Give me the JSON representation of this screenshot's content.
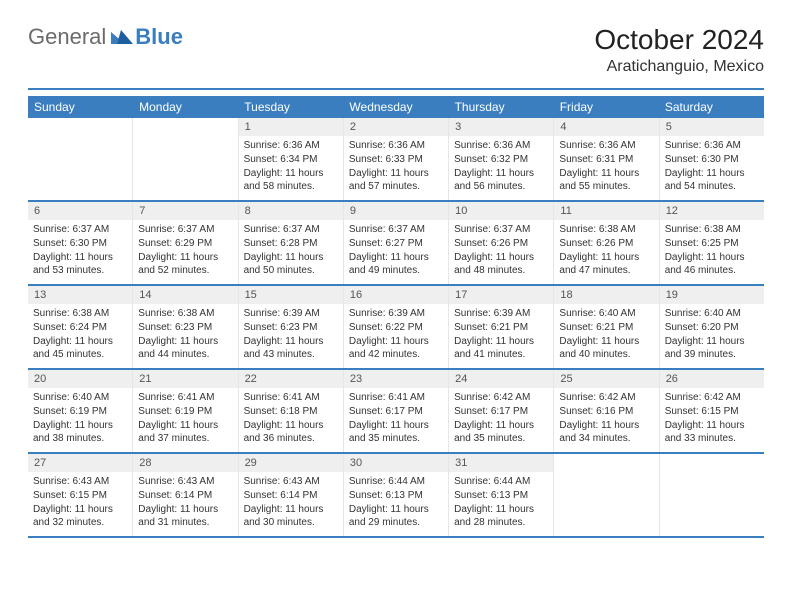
{
  "brand": {
    "word1": "General",
    "word2": "Blue"
  },
  "title": "October 2024",
  "location": "Aratichanguio, Mexico",
  "colors": {
    "accent": "#3a7ebf",
    "dayHeaderBg": "#efefef",
    "text": "#333333",
    "mutedText": "#6b6b6b",
    "background": "#ffffff"
  },
  "daysOfWeek": [
    "Sunday",
    "Monday",
    "Tuesday",
    "Wednesday",
    "Thursday",
    "Friday",
    "Saturday"
  ],
  "weeks": [
    [
      {
        "n": "",
        "sunrise": "",
        "sunset": "",
        "daylight": ""
      },
      {
        "n": "",
        "sunrise": "",
        "sunset": "",
        "daylight": ""
      },
      {
        "n": "1",
        "sunrise": "Sunrise: 6:36 AM",
        "sunset": "Sunset: 6:34 PM",
        "daylight": "Daylight: 11 hours and 58 minutes."
      },
      {
        "n": "2",
        "sunrise": "Sunrise: 6:36 AM",
        "sunset": "Sunset: 6:33 PM",
        "daylight": "Daylight: 11 hours and 57 minutes."
      },
      {
        "n": "3",
        "sunrise": "Sunrise: 6:36 AM",
        "sunset": "Sunset: 6:32 PM",
        "daylight": "Daylight: 11 hours and 56 minutes."
      },
      {
        "n": "4",
        "sunrise": "Sunrise: 6:36 AM",
        "sunset": "Sunset: 6:31 PM",
        "daylight": "Daylight: 11 hours and 55 minutes."
      },
      {
        "n": "5",
        "sunrise": "Sunrise: 6:36 AM",
        "sunset": "Sunset: 6:30 PM",
        "daylight": "Daylight: 11 hours and 54 minutes."
      }
    ],
    [
      {
        "n": "6",
        "sunrise": "Sunrise: 6:37 AM",
        "sunset": "Sunset: 6:30 PM",
        "daylight": "Daylight: 11 hours and 53 minutes."
      },
      {
        "n": "7",
        "sunrise": "Sunrise: 6:37 AM",
        "sunset": "Sunset: 6:29 PM",
        "daylight": "Daylight: 11 hours and 52 minutes."
      },
      {
        "n": "8",
        "sunrise": "Sunrise: 6:37 AM",
        "sunset": "Sunset: 6:28 PM",
        "daylight": "Daylight: 11 hours and 50 minutes."
      },
      {
        "n": "9",
        "sunrise": "Sunrise: 6:37 AM",
        "sunset": "Sunset: 6:27 PM",
        "daylight": "Daylight: 11 hours and 49 minutes."
      },
      {
        "n": "10",
        "sunrise": "Sunrise: 6:37 AM",
        "sunset": "Sunset: 6:26 PM",
        "daylight": "Daylight: 11 hours and 48 minutes."
      },
      {
        "n": "11",
        "sunrise": "Sunrise: 6:38 AM",
        "sunset": "Sunset: 6:26 PM",
        "daylight": "Daylight: 11 hours and 47 minutes."
      },
      {
        "n": "12",
        "sunrise": "Sunrise: 6:38 AM",
        "sunset": "Sunset: 6:25 PM",
        "daylight": "Daylight: 11 hours and 46 minutes."
      }
    ],
    [
      {
        "n": "13",
        "sunrise": "Sunrise: 6:38 AM",
        "sunset": "Sunset: 6:24 PM",
        "daylight": "Daylight: 11 hours and 45 minutes."
      },
      {
        "n": "14",
        "sunrise": "Sunrise: 6:38 AM",
        "sunset": "Sunset: 6:23 PM",
        "daylight": "Daylight: 11 hours and 44 minutes."
      },
      {
        "n": "15",
        "sunrise": "Sunrise: 6:39 AM",
        "sunset": "Sunset: 6:23 PM",
        "daylight": "Daylight: 11 hours and 43 minutes."
      },
      {
        "n": "16",
        "sunrise": "Sunrise: 6:39 AM",
        "sunset": "Sunset: 6:22 PM",
        "daylight": "Daylight: 11 hours and 42 minutes."
      },
      {
        "n": "17",
        "sunrise": "Sunrise: 6:39 AM",
        "sunset": "Sunset: 6:21 PM",
        "daylight": "Daylight: 11 hours and 41 minutes."
      },
      {
        "n": "18",
        "sunrise": "Sunrise: 6:40 AM",
        "sunset": "Sunset: 6:21 PM",
        "daylight": "Daylight: 11 hours and 40 minutes."
      },
      {
        "n": "19",
        "sunrise": "Sunrise: 6:40 AM",
        "sunset": "Sunset: 6:20 PM",
        "daylight": "Daylight: 11 hours and 39 minutes."
      }
    ],
    [
      {
        "n": "20",
        "sunrise": "Sunrise: 6:40 AM",
        "sunset": "Sunset: 6:19 PM",
        "daylight": "Daylight: 11 hours and 38 minutes."
      },
      {
        "n": "21",
        "sunrise": "Sunrise: 6:41 AM",
        "sunset": "Sunset: 6:19 PM",
        "daylight": "Daylight: 11 hours and 37 minutes."
      },
      {
        "n": "22",
        "sunrise": "Sunrise: 6:41 AM",
        "sunset": "Sunset: 6:18 PM",
        "daylight": "Daylight: 11 hours and 36 minutes."
      },
      {
        "n": "23",
        "sunrise": "Sunrise: 6:41 AM",
        "sunset": "Sunset: 6:17 PM",
        "daylight": "Daylight: 11 hours and 35 minutes."
      },
      {
        "n": "24",
        "sunrise": "Sunrise: 6:42 AM",
        "sunset": "Sunset: 6:17 PM",
        "daylight": "Daylight: 11 hours and 35 minutes."
      },
      {
        "n": "25",
        "sunrise": "Sunrise: 6:42 AM",
        "sunset": "Sunset: 6:16 PM",
        "daylight": "Daylight: 11 hours and 34 minutes."
      },
      {
        "n": "26",
        "sunrise": "Sunrise: 6:42 AM",
        "sunset": "Sunset: 6:15 PM",
        "daylight": "Daylight: 11 hours and 33 minutes."
      }
    ],
    [
      {
        "n": "27",
        "sunrise": "Sunrise: 6:43 AM",
        "sunset": "Sunset: 6:15 PM",
        "daylight": "Daylight: 11 hours and 32 minutes."
      },
      {
        "n": "28",
        "sunrise": "Sunrise: 6:43 AM",
        "sunset": "Sunset: 6:14 PM",
        "daylight": "Daylight: 11 hours and 31 minutes."
      },
      {
        "n": "29",
        "sunrise": "Sunrise: 6:43 AM",
        "sunset": "Sunset: 6:14 PM",
        "daylight": "Daylight: 11 hours and 30 minutes."
      },
      {
        "n": "30",
        "sunrise": "Sunrise: 6:44 AM",
        "sunset": "Sunset: 6:13 PM",
        "daylight": "Daylight: 11 hours and 29 minutes."
      },
      {
        "n": "31",
        "sunrise": "Sunrise: 6:44 AM",
        "sunset": "Sunset: 6:13 PM",
        "daylight": "Daylight: 11 hours and 28 minutes."
      },
      {
        "n": "",
        "sunrise": "",
        "sunset": "",
        "daylight": ""
      },
      {
        "n": "",
        "sunrise": "",
        "sunset": "",
        "daylight": ""
      }
    ]
  ]
}
